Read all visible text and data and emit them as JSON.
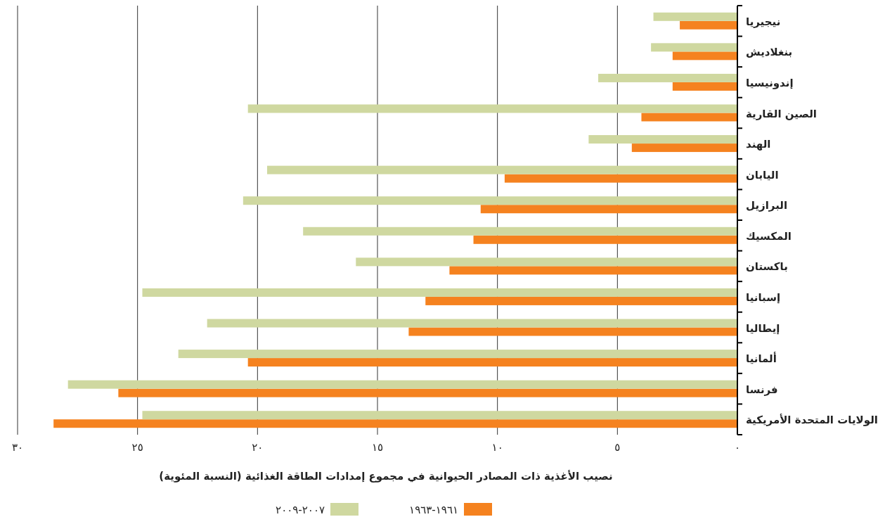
{
  "chart_data": {
    "type": "bar",
    "orientation": "horizontal",
    "categories": [
      "نيجيريا",
      "بنغلاديش",
      "إندونيسيا",
      "الصين القارية",
      "الهند",
      "اليابان",
      "البرازيل",
      "المكسيك",
      "باكستان",
      "إسبانيا",
      "إيطاليا",
      "ألمانيا",
      "فرنسا",
      "الولايات المتحدة الأمريكية"
    ],
    "series": [
      {
        "name": "١٩٦١-١٩٦٣",
        "color": "#f5821f",
        "values": [
          2.4,
          2.7,
          2.7,
          4.0,
          4.4,
          9.7,
          10.7,
          11.0,
          12.0,
          13.0,
          13.7,
          20.4,
          25.8,
          28.5
        ]
      },
      {
        "name": "٢٠٠٧-٢٠٠٩",
        "color": "#cfd8a0",
        "values": [
          3.5,
          3.6,
          5.8,
          20.4,
          6.2,
          19.6,
          20.6,
          18.1,
          15.9,
          24.8,
          22.1,
          23.3,
          27.9,
          24.8
        ]
      }
    ],
    "xlabel": "نصيب الأغذية ذات المصادر الحيوانية في مجموع إمدادات الطاقة الغذائية (النسبة المئوية)",
    "xlim": [
      30,
      0
    ],
    "xticks": [
      {
        "value": 0,
        "label": "٠"
      },
      {
        "value": 5,
        "label": "٥"
      },
      {
        "value": 10,
        "label": "١٠"
      },
      {
        "value": 15,
        "label": "١٥"
      },
      {
        "value": 20,
        "label": "٢٠"
      },
      {
        "value": 25,
        "label": "٢٥"
      },
      {
        "value": 30,
        "label": "٣٠"
      }
    ],
    "grid": "x",
    "legend": "bottom"
  }
}
